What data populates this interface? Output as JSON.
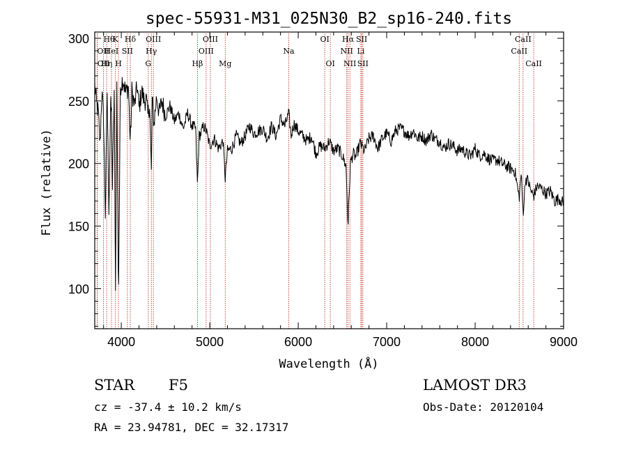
{
  "chart_data": {
    "type": "line",
    "title": "spec-55931-M31_025N30_B2_sp16-240.fits",
    "xlabel": "Wavelength (Å)",
    "ylabel": "Flux (relative)",
    "xlim": [
      3700,
      9000
    ],
    "ylim": [
      68,
      305
    ],
    "xticks": [
      4000,
      5000,
      6000,
      7000,
      8000,
      9000
    ],
    "yticks": [
      100,
      150,
      200,
      250,
      300
    ],
    "series": [
      {
        "name": "spectrum",
        "x": [
          3700,
          3720,
          3740,
          3760,
          3780,
          3800,
          3820,
          3840,
          3860,
          3880,
          3890,
          3900,
          3920,
          3934,
          3950,
          3968,
          3990,
          4020,
          4050,
          4080,
          4102,
          4120,
          4150,
          4180,
          4200,
          4230,
          4260,
          4280,
          4300,
          4320,
          4340,
          4350,
          4370,
          4400,
          4430,
          4460,
          4500,
          4550,
          4600,
          4650,
          4700,
          4750,
          4800,
          4840,
          4861,
          4880,
          4900,
          4930,
          4960,
          5000,
          5050,
          5100,
          5150,
          5175,
          5200,
          5250,
          5300,
          5350,
          5400,
          5450,
          5500,
          5550,
          5600,
          5650,
          5700,
          5750,
          5800,
          5850,
          5893,
          5920,
          5950,
          6000,
          6050,
          6100,
          6150,
          6200,
          6250,
          6300,
          6350,
          6400,
          6450,
          6500,
          6540,
          6563,
          6590,
          6620,
          6650,
          6700,
          6750,
          6800,
          6850,
          6900,
          6950,
          7000,
          7050,
          7100,
          7150,
          7200,
          7250,
          7300,
          7350,
          7400,
          7450,
          7500,
          7550,
          7600,
          7650,
          7700,
          7750,
          7800,
          7850,
          7900,
          7950,
          8000,
          8050,
          8100,
          8150,
          8200,
          8250,
          8300,
          8350,
          8400,
          8450,
          8498,
          8520,
          8542,
          8570,
          8600,
          8630,
          8662,
          8700,
          8750,
          8800,
          8850,
          8900,
          8950,
          9000
        ],
        "values": [
          262,
          248,
          240,
          215,
          258,
          235,
          160,
          258,
          165,
          245,
          240,
          180,
          258,
          95,
          262,
          90,
          262,
          268,
          256,
          262,
          215,
          258,
          246,
          262,
          244,
          258,
          250,
          252,
          238,
          248,
          192,
          250,
          232,
          254,
          240,
          250,
          238,
          246,
          234,
          240,
          228,
          240,
          230,
          228,
          182,
          222,
          224,
          230,
          226,
          214,
          220,
          212,
          218,
          188,
          210,
          212,
          222,
          216,
          222,
          230,
          224,
          226,
          228,
          220,
          230,
          222,
          236,
          230,
          240,
          222,
          232,
          226,
          222,
          218,
          222,
          208,
          214,
          212,
          218,
          210,
          212,
          206,
          198,
          150,
          200,
          208,
          205,
          216,
          210,
          220,
          222,
          212,
          220,
          224,
          218,
          226,
          228,
          226,
          222,
          226,
          220,
          222,
          218,
          224,
          219,
          218,
          212,
          216,
          214,
          210,
          212,
          208,
          206,
          212,
          206,
          208,
          204,
          202,
          203,
          200,
          198,
          196,
          194,
          172,
          192,
          160,
          188,
          186,
          178,
          174,
          182,
          180,
          176,
          178,
          170,
          172,
          168
        ]
      }
    ],
    "spectral_lines": [
      {
        "name": "Hθ",
        "x": 3798,
        "row": 0,
        "pos": "left"
      },
      {
        "name": "OII",
        "x": 3727,
        "row": 1,
        "pos": "left"
      },
      {
        "name": "OII",
        "x": 3729,
        "row": 2,
        "pos": "left"
      },
      {
        "name": "Hη",
        "x": 3835,
        "row": 2,
        "pos": "center"
      },
      {
        "name": "HeI",
        "x": 3889,
        "row": 1,
        "pos": "center"
      },
      {
        "name": "K",
        "x": 3934,
        "row": 0,
        "pos": "center"
      },
      {
        "name": "H",
        "x": 3968,
        "row": 2,
        "pos": "center"
      },
      {
        "name": "SII",
        "x": 4069,
        "row": 1,
        "pos": "center"
      },
      {
        "name": "Hδ",
        "x": 4102,
        "row": 0,
        "pos": "center"
      },
      {
        "name": "Hγ",
        "x": 4340,
        "row": 1,
        "pos": "center"
      },
      {
        "name": "G",
        "x": 4305,
        "row": 2,
        "pos": "center"
      },
      {
        "name": "OIII",
        "x": 4363,
        "row": 0,
        "pos": "center"
      },
      {
        "name": "Hβ",
        "x": 4861,
        "row": 2,
        "pos": "center"
      },
      {
        "name": "OIII",
        "x": 4959,
        "row": 1,
        "pos": "center"
      },
      {
        "name": "OIII",
        "x": 5007,
        "row": 0,
        "pos": "center"
      },
      {
        "name": "Mg",
        "x": 5175,
        "row": 2,
        "pos": "center"
      },
      {
        "name": "Na",
        "x": 5893,
        "row": 1,
        "pos": "center"
      },
      {
        "name": "OI",
        "x": 6300,
        "row": 0,
        "pos": "center"
      },
      {
        "name": "OI",
        "x": 6363,
        "row": 2,
        "pos": "center"
      },
      {
        "name": "Hα",
        "x": 6563,
        "row": 0,
        "pos": "center"
      },
      {
        "name": "NII",
        "x": 6548,
        "row": 1,
        "pos": "center"
      },
      {
        "name": "NII",
        "x": 6584,
        "row": 2,
        "pos": "center"
      },
      {
        "name": "SII",
        "x": 6717,
        "row": 0,
        "pos": "center"
      },
      {
        "name": "Li",
        "x": 6708,
        "row": 1,
        "pos": "center"
      },
      {
        "name": "SII",
        "x": 6731,
        "row": 2,
        "pos": "center"
      },
      {
        "name": "CaII",
        "x": 8498,
        "row": 1,
        "pos": "center"
      },
      {
        "name": "CaII",
        "x": 8542,
        "row": 0,
        "pos": "center"
      },
      {
        "name": "CaII",
        "x": 8662,
        "row": 2,
        "pos": "center"
      }
    ],
    "line_color": "#000000",
    "marker_color": "#c0392b"
  },
  "footer": {
    "object_type": "STAR",
    "subclass": "F5",
    "cz": "cz = -37.4 ± 10.2 km/s",
    "radec": "RA =  23.94781, DEC =  32.17317",
    "survey": "LAMOST DR3",
    "obs_date": "Obs-Date: 20120104"
  }
}
